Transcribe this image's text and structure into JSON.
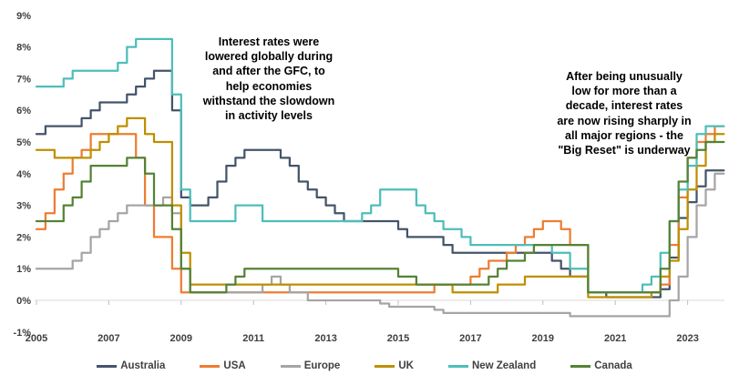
{
  "chart_data": {
    "type": "line",
    "subtype": "step-after",
    "title": "",
    "xlabel": "",
    "ylabel": "",
    "xlim": [
      2005,
      2024
    ],
    "ylim": [
      -1,
      9
    ],
    "grid": "zero-baseline-only",
    "legend_position": "bottom",
    "x_start": 2005,
    "x_step": 0.25,
    "x_axis": {
      "ticks": [
        "2005",
        "2007",
        "2009",
        "2011",
        "2013",
        "2015",
        "2017",
        "2019",
        "2021",
        "2023"
      ],
      "tick_values": [
        2005,
        2007,
        2009,
        2011,
        2013,
        2015,
        2017,
        2019,
        2021,
        2023
      ]
    },
    "y_axis": {
      "ticks": [
        "9%",
        "8%",
        "7%",
        "6%",
        "5%",
        "4%",
        "3%",
        "2%",
        "1%",
        "0%",
        "-1%"
      ],
      "max": 9,
      "min": -1
    },
    "colors": {
      "axis_text": "#404040",
      "baseline": "#D9D9D9",
      "annotation_text": "#000000"
    },
    "series": [
      {
        "name": "Australia",
        "color": "#44546A",
        "values": [
          5.25,
          5.5,
          5.5,
          5.5,
          5.5,
          5.75,
          6.0,
          6.25,
          6.25,
          6.25,
          6.5,
          6.75,
          7.0,
          7.25,
          7.25,
          6.0,
          3.25,
          3.0,
          3.0,
          3.25,
          3.75,
          4.25,
          4.5,
          4.75,
          4.75,
          4.75,
          4.75,
          4.5,
          4.25,
          3.75,
          3.5,
          3.25,
          3.0,
          2.75,
          2.5,
          2.5,
          2.5,
          2.5,
          2.5,
          2.5,
          2.25,
          2.0,
          2.0,
          2.0,
          2.0,
          1.75,
          1.5,
          1.5,
          1.5,
          1.5,
          1.5,
          1.5,
          1.5,
          1.5,
          1.5,
          1.5,
          1.5,
          1.25,
          1.0,
          0.75,
          0.75,
          0.25,
          0.25,
          0.1,
          0.1,
          0.1,
          0.1,
          0.1,
          0.1,
          0.35,
          1.35,
          2.6,
          3.1,
          3.6,
          4.1,
          4.1
        ]
      },
      {
        "name": "USA",
        "color": "#ED7D31",
        "values": [
          2.25,
          2.75,
          3.5,
          4.0,
          4.5,
          4.75,
          5.25,
          5.25,
          5.25,
          5.25,
          5.25,
          4.5,
          3.0,
          2.0,
          2.0,
          1.0,
          0.25,
          0.25,
          0.25,
          0.25,
          0.25,
          0.25,
          0.25,
          0.25,
          0.25,
          0.25,
          0.25,
          0.25,
          0.25,
          0.25,
          0.25,
          0.25,
          0.25,
          0.25,
          0.25,
          0.25,
          0.25,
          0.25,
          0.25,
          0.25,
          0.25,
          0.25,
          0.25,
          0.25,
          0.5,
          0.5,
          0.5,
          0.5,
          0.75,
          1.0,
          1.25,
          1.25,
          1.5,
          1.75,
          2.0,
          2.25,
          2.5,
          2.5,
          2.25,
          1.75,
          1.75,
          0.25,
          0.25,
          0.25,
          0.25,
          0.25,
          0.25,
          0.25,
          0.25,
          0.5,
          1.75,
          3.25,
          4.5,
          5.0,
          5.25,
          5.5
        ]
      },
      {
        "name": "Europe",
        "color": "#A5A5A5",
        "values": [
          1.0,
          1.0,
          1.0,
          1.0,
          1.25,
          1.5,
          2.0,
          2.25,
          2.5,
          2.75,
          3.0,
          3.0,
          3.0,
          3.0,
          3.25,
          2.75,
          1.0,
          0.25,
          0.25,
          0.25,
          0.25,
          0.25,
          0.25,
          0.25,
          0.25,
          0.5,
          0.75,
          0.5,
          0.25,
          0.25,
          0.0,
          0.0,
          0.0,
          0.0,
          0.0,
          0.0,
          0.0,
          0.0,
          -0.1,
          -0.2,
          -0.2,
          -0.2,
          -0.2,
          -0.2,
          -0.3,
          -0.4,
          -0.4,
          -0.4,
          -0.4,
          -0.4,
          -0.4,
          -0.4,
          -0.4,
          -0.4,
          -0.4,
          -0.4,
          -0.4,
          -0.4,
          -0.4,
          -0.5,
          -0.5,
          -0.5,
          -0.5,
          -0.5,
          -0.5,
          -0.5,
          -0.5,
          -0.5,
          -0.5,
          -0.5,
          0.0,
          0.75,
          2.0,
          3.0,
          3.5,
          4.0
        ]
      },
      {
        "name": "UK",
        "color": "#BF8F00",
        "values": [
          4.75,
          4.75,
          4.5,
          4.5,
          4.5,
          4.5,
          4.75,
          5.0,
          5.25,
          5.5,
          5.75,
          5.75,
          5.25,
          5.0,
          5.0,
          3.0,
          1.5,
          0.5,
          0.5,
          0.5,
          0.5,
          0.5,
          0.5,
          0.5,
          0.5,
          0.5,
          0.5,
          0.5,
          0.5,
          0.5,
          0.5,
          0.5,
          0.5,
          0.5,
          0.5,
          0.5,
          0.5,
          0.5,
          0.5,
          0.5,
          0.5,
          0.5,
          0.5,
          0.5,
          0.5,
          0.5,
          0.25,
          0.25,
          0.25,
          0.25,
          0.25,
          0.5,
          0.5,
          0.5,
          0.75,
          0.75,
          0.75,
          0.75,
          0.75,
          0.75,
          0.75,
          0.1,
          0.1,
          0.1,
          0.1,
          0.1,
          0.1,
          0.1,
          0.25,
          0.75,
          1.25,
          2.25,
          3.5,
          4.25,
          5.0,
          5.25
        ]
      },
      {
        "name": "New Zealand",
        "color": "#4DBEBA",
        "values": [
          6.75,
          6.75,
          6.75,
          7.0,
          7.25,
          7.25,
          7.25,
          7.25,
          7.25,
          7.5,
          8.0,
          8.25,
          8.25,
          8.25,
          8.25,
          6.5,
          3.5,
          2.5,
          2.5,
          2.5,
          2.5,
          2.5,
          3.0,
          3.0,
          3.0,
          2.5,
          2.5,
          2.5,
          2.5,
          2.5,
          2.5,
          2.5,
          2.5,
          2.5,
          2.5,
          2.5,
          2.75,
          3.0,
          3.5,
          3.5,
          3.5,
          3.5,
          3.0,
          2.75,
          2.5,
          2.25,
          2.25,
          2.0,
          1.75,
          1.75,
          1.75,
          1.75,
          1.75,
          1.75,
          1.75,
          1.75,
          1.75,
          1.5,
          1.5,
          1.0,
          1.0,
          0.25,
          0.25,
          0.25,
          0.25,
          0.25,
          0.25,
          0.5,
          0.75,
          1.5,
          2.5,
          3.5,
          4.25,
          5.25,
          5.5,
          5.5
        ]
      },
      {
        "name": "Canada",
        "color": "#548235",
        "values": [
          2.5,
          2.5,
          2.5,
          3.0,
          3.25,
          3.75,
          4.25,
          4.25,
          4.25,
          4.25,
          4.5,
          4.5,
          4.0,
          3.0,
          3.0,
          2.25,
          1.0,
          0.25,
          0.25,
          0.25,
          0.25,
          0.5,
          0.75,
          1.0,
          1.0,
          1.0,
          1.0,
          1.0,
          1.0,
          1.0,
          1.0,
          1.0,
          1.0,
          1.0,
          1.0,
          1.0,
          1.0,
          1.0,
          1.0,
          1.0,
          0.75,
          0.75,
          0.5,
          0.5,
          0.5,
          0.5,
          0.5,
          0.5,
          0.5,
          0.5,
          0.75,
          1.0,
          1.25,
          1.25,
          1.5,
          1.75,
          1.75,
          1.75,
          1.75,
          1.75,
          1.75,
          0.25,
          0.25,
          0.25,
          0.25,
          0.25,
          0.25,
          0.25,
          0.25,
          1.0,
          2.5,
          3.75,
          4.5,
          4.75,
          5.0,
          5.0
        ]
      }
    ],
    "annotations": [
      {
        "id": "gfc",
        "lines": [
          "Interest rates were",
          "lowered globally during",
          "and after the GFC, to",
          "help economies",
          "withstand the slowdown",
          "in activity levels"
        ]
      },
      {
        "id": "big-reset",
        "lines": [
          "After being unusually",
          "low for more than a",
          "decade, interest rates",
          "are now rising sharply in",
          "all major regions - the",
          "\"Big Reset\" is underway"
        ]
      }
    ]
  }
}
